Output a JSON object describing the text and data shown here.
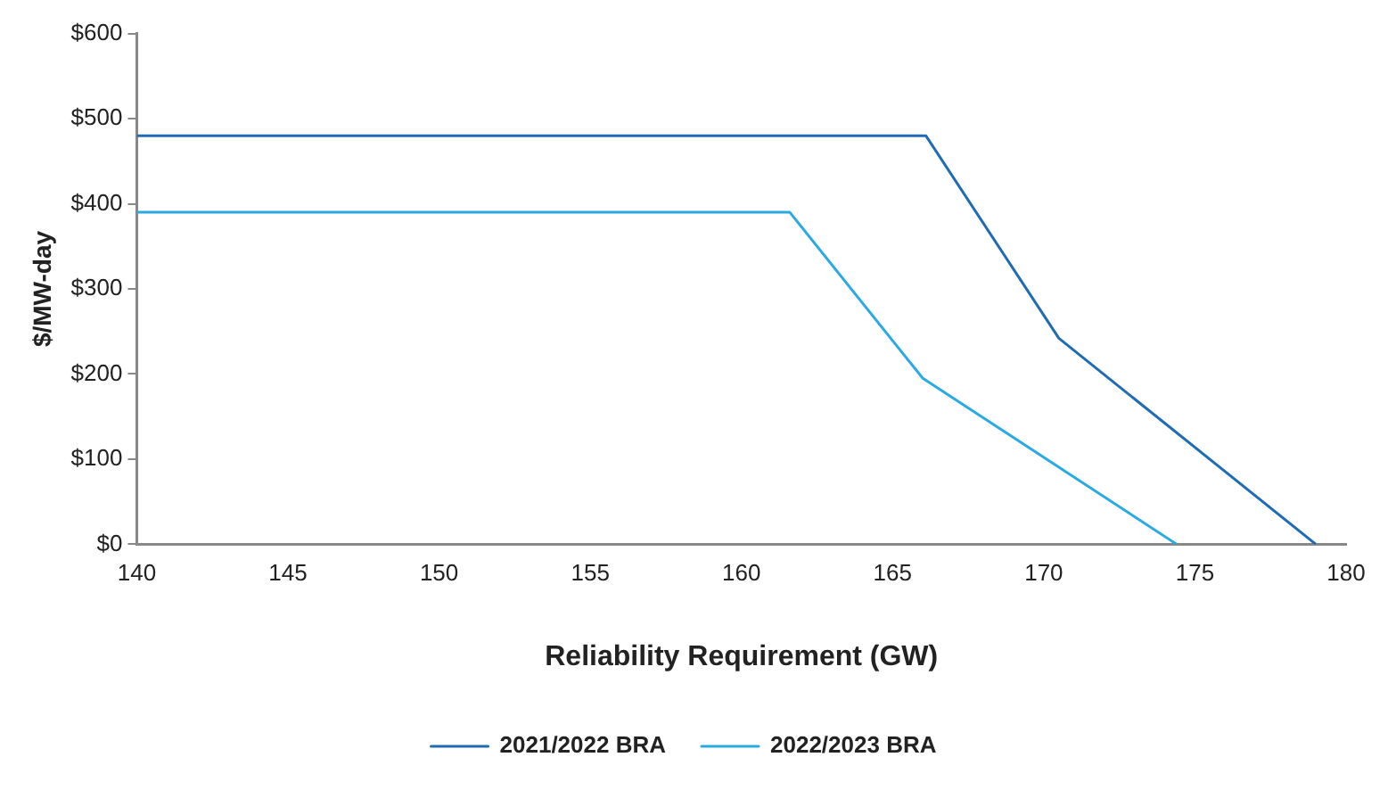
{
  "chart_data": {
    "type": "line",
    "xlabel": "Reliability Requirement (GW)",
    "ylabel": "$/MW-day",
    "xlim": [
      140,
      180
    ],
    "xticks": [
      140,
      145,
      150,
      155,
      160,
      165,
      170,
      175,
      180
    ],
    "ylim": [
      0,
      600
    ],
    "yticks": [
      {
        "value": 0,
        "label": "$0"
      },
      {
        "value": 100,
        "label": "$100"
      },
      {
        "value": 200,
        "label": "$200"
      },
      {
        "value": 300,
        "label": "$300"
      },
      {
        "value": 400,
        "label": "$400"
      },
      {
        "value": 500,
        "label": "$500"
      },
      {
        "value": 600,
        "label": "$600"
      }
    ],
    "grid": false,
    "legend": "bottom",
    "marker": "none",
    "line_style": "solid",
    "series": [
      {
        "name": "2021/2022 BRA",
        "color": "#1f6cb4",
        "x": [
          140,
          166.1,
          170.5,
          179.0
        ],
        "values": [
          480,
          480,
          242,
          0
        ]
      },
      {
        "name": "2022/2023 BRA",
        "color": "#2aaae2",
        "x": [
          140,
          161.6,
          166.0,
          174.4
        ],
        "values": [
          390,
          390,
          195,
          0
        ]
      }
    ]
  }
}
